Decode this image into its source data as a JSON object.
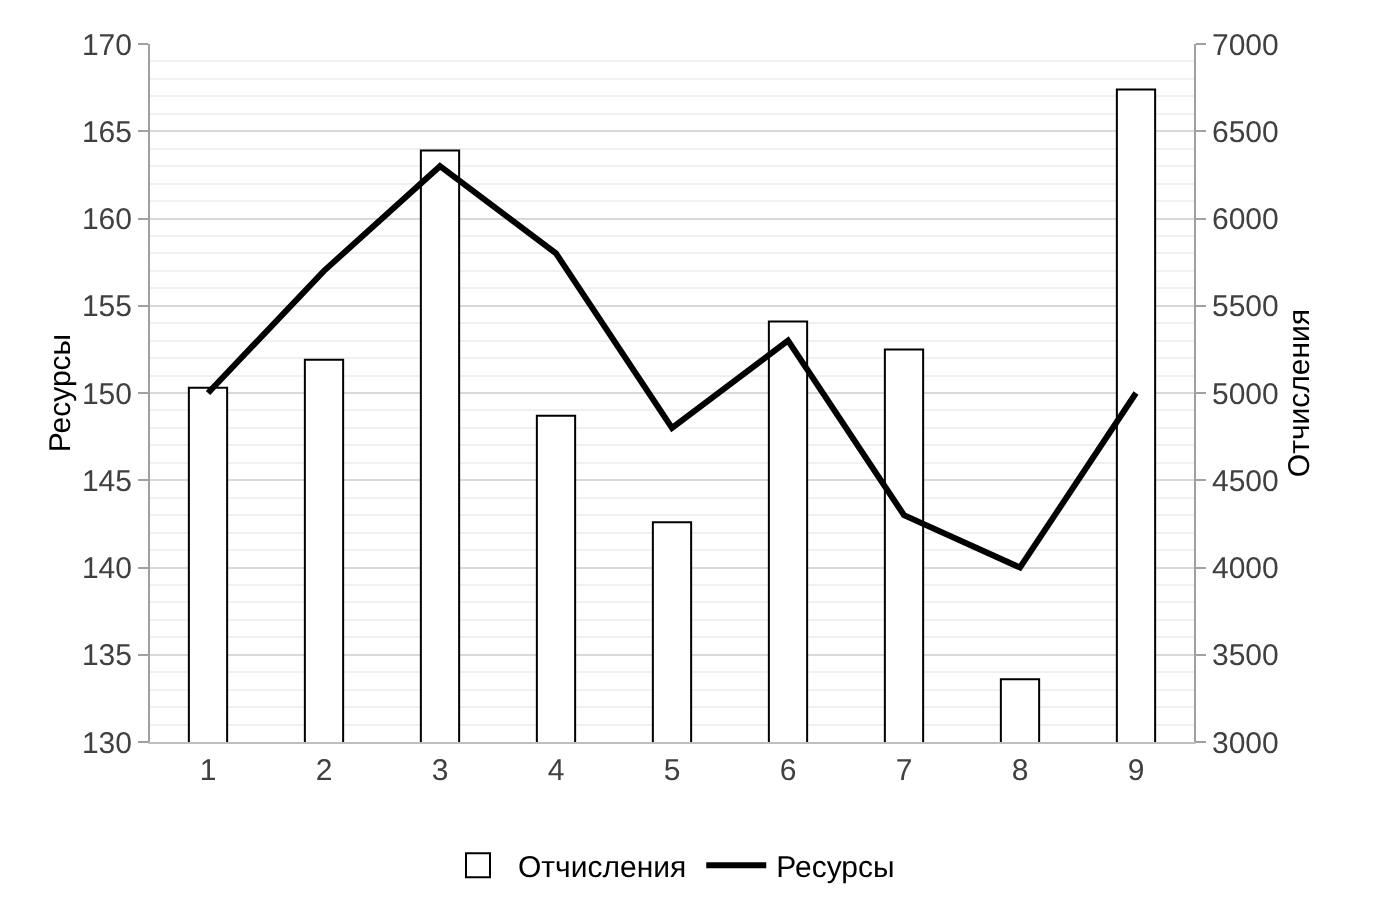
{
  "chart_data": {
    "type": "bar",
    "categories": [
      "1",
      "2",
      "3",
      "4",
      "5",
      "6",
      "7",
      "8",
      "9"
    ],
    "series": [
      {
        "name": "Отчисления",
        "axis": "y2",
        "color": "#ffffff",
        "values": [
          5030,
          5190,
          6390,
          4870,
          4260,
          5410,
          5250,
          3360,
          6740
        ]
      },
      {
        "name": "Ресурсы",
        "type": "line",
        "axis": "y",
        "color": "#000000",
        "values": [
          150,
          157,
          163,
          158,
          148,
          153,
          143,
          140,
          150
        ]
      }
    ],
    "ylabel": "Ресурсы",
    "y2label": "Отчисления",
    "ylim": [
      130,
      170
    ],
    "yticks": [
      130,
      135,
      140,
      145,
      150,
      155,
      160,
      165,
      170
    ],
    "y2lim": [
      3000,
      7000
    ],
    "y2ticks": [
      3000,
      3500,
      4000,
      4500,
      5000,
      5500,
      6000,
      6500,
      7000
    ],
    "grid": "y",
    "legend": "bottom",
    "marker": "none",
    "line_style": "solid"
  }
}
